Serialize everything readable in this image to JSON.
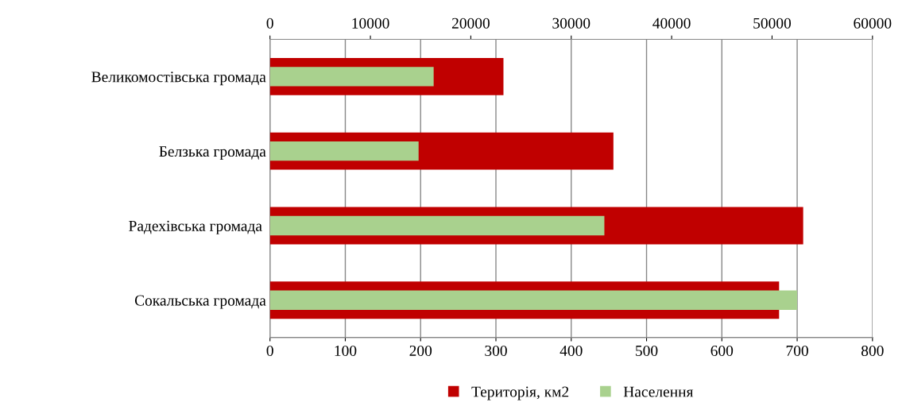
{
  "chart_data": {
    "type": "bar",
    "orientation": "horizontal",
    "categories": [
      "Великомостівська громада",
      "Белзька громада",
      "Радехівська громада ",
      "Сокальська громада"
    ],
    "series": [
      {
        "name": "Територія, км2",
        "color": "#c00000",
        "values": [
          310,
          456,
          708,
          676
        ]
      },
      {
        "name": "Населення",
        "color": "#a9d18e",
        "values": [
          16300,
          14800,
          33300,
          52500
        ],
        "axis": "x2"
      }
    ],
    "xlim": [
      0,
      800
    ],
    "xticks": [
      0,
      100,
      200,
      300,
      400,
      500,
      600,
      700,
      800
    ],
    "x2lim": [
      0,
      60000
    ],
    "x2ticks": [
      0,
      10000,
      20000,
      30000,
      40000,
      50000,
      60000
    ],
    "grid": "x",
    "legend": "bottom"
  }
}
